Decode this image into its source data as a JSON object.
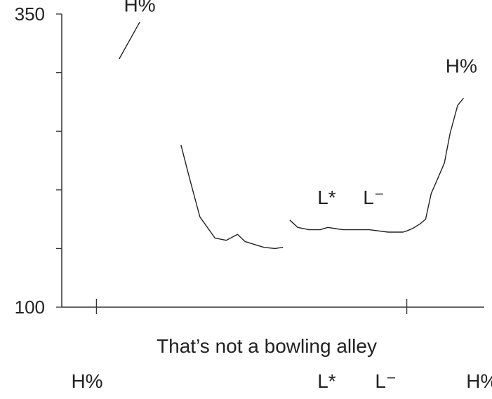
{
  "chart_data": {
    "type": "line",
    "title": "",
    "xlabel": "That’s not a bowling alley",
    "ylabel": "",
    "y_ticks": [
      "350",
      "100"
    ],
    "ylim": [
      100,
      350
    ],
    "xlim": [
      0,
      1
    ],
    "x_ticks": [
      0.025,
      0.85
    ],
    "grid": false,
    "colors": {
      "line": "#222222",
      "axis": "#333333",
      "text": "#222222"
    },
    "series": [
      {
        "x": [
          0.086,
          0.14
        ],
        "y": [
          312,
          343
        ]
      },
      {
        "x": [
          0.25,
          0.27,
          0.3,
          0.34,
          0.37,
          0.4,
          0.42,
          0.45,
          0.47,
          0.5,
          0.52
        ],
        "y": [
          238,
          213,
          177,
          159,
          157,
          162,
          156,
          153,
          151,
          150,
          151
        ]
      },
      {
        "x": [
          0.54,
          0.56,
          0.59,
          0.62,
          0.64,
          0.66,
          0.68,
          0.7,
          0.75,
          0.8,
          0.84,
          0.85,
          0.865,
          0.885,
          0.9,
          0.915,
          0.93,
          0.95,
          0.965,
          0.985,
          1.0
        ],
        "y": [
          174,
          168,
          166,
          166,
          168,
          167,
          166,
          166,
          166,
          164,
          164,
          165,
          167,
          171,
          175,
          197,
          208,
          223,
          248,
          272,
          278
        ]
      }
    ],
    "annotations": [
      {
        "text": "H%",
        "x": 0.14,
        "y": 352
      },
      {
        "text": "L*",
        "x": 0.637,
        "y": 188
      },
      {
        "text": "L⁻",
        "x": 0.762,
        "y": 188
      },
      {
        "text": "H%",
        "x": 0.995,
        "y": 300
      }
    ],
    "bottom_labels": [
      {
        "text": "H%",
        "x": 0.0
      },
      {
        "text": "L*",
        "x": 0.637
      },
      {
        "text": "L⁻",
        "x": 0.794
      },
      {
        "text": "H%",
        "x": 1.05
      }
    ]
  }
}
